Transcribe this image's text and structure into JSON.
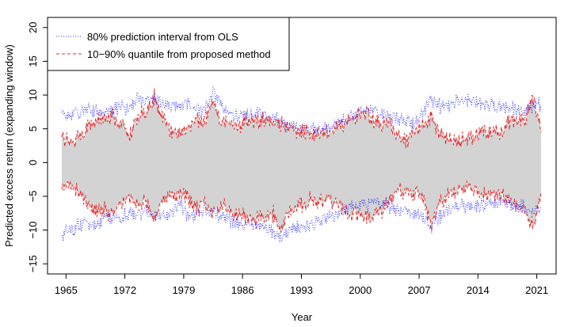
{
  "chart_data": {
    "type": "line",
    "title": "",
    "xlabel": "Year",
    "ylabel": "Predicted excess return (expanding window)",
    "xlim": [
      1962.8,
      2023.3
    ],
    "ylim": [
      -16.5,
      21.5
    ],
    "x_ticks": [
      1965,
      1972,
      1979,
      1986,
      1993,
      2000,
      2007,
      2014,
      2021
    ],
    "x_tick_labels": [
      "1965",
      "1972",
      "1979",
      "1986",
      "1993",
      "2000",
      "2007",
      "2014",
      "2021"
    ],
    "y_ticks": [
      -15,
      -10,
      -5,
      0,
      5,
      10,
      15,
      20
    ],
    "y_tick_labels": [
      "−15",
      "−10",
      "−5",
      "0",
      "5",
      "10",
      "15",
      "20"
    ],
    "grid": false,
    "legend": {
      "position": "top-left",
      "entries": [
        "80% prediction interval from OLS",
        "10−90% quantile from proposed method"
      ]
    },
    "colors": {
      "ols": "#3a3aff",
      "quantile": "#e8282a",
      "band": "#d3d3d3"
    },
    "x": [
      1964.5,
      1965.5,
      1966.5,
      1967.5,
      1968.5,
      1969.5,
      1970.5,
      1971.5,
      1972.5,
      1973.5,
      1974.5,
      1975.5,
      1976.5,
      1977.5,
      1978.5,
      1979.5,
      1980.5,
      1981.5,
      1982.5,
      1983.5,
      1984.5,
      1985.5,
      1986.5,
      1987.5,
      1988.5,
      1989.5,
      1990.5,
      1991.5,
      1992.5,
      1993.5,
      1994.5,
      1995.5,
      1996.5,
      1997.5,
      1998.5,
      1999.5,
      2000.5,
      2001.5,
      2002.5,
      2003.5,
      2004.5,
      2005.5,
      2006.5,
      2007.5,
      2008.5,
      2009.5,
      2010.5,
      2011.5,
      2012.5,
      2013.5,
      2014.5,
      2015.5,
      2016.5,
      2017.5,
      2018.5,
      2019.5,
      2020.5,
      2021.5
    ],
    "series": [
      {
        "name": "80% prediction interval from OLS (upper)",
        "values": [
          6.8,
          7.2,
          7.5,
          8.2,
          7.8,
          7.4,
          7.9,
          8.4,
          8.2,
          9.5,
          8.7,
          9.8,
          8.6,
          8.3,
          8.5,
          8.9,
          8.1,
          7.6,
          10.8,
          8.4,
          7.3,
          6.9,
          7.1,
          7.4,
          7.0,
          6.6,
          6.1,
          5.6,
          5.4,
          5.3,
          5.1,
          5.0,
          5.4,
          5.9,
          6.6,
          7.2,
          7.6,
          7.9,
          7.4,
          6.9,
          6.3,
          6.0,
          6.1,
          7.2,
          9.3,
          8.3,
          8.6,
          8.9,
          9.1,
          8.7,
          8.4,
          8.6,
          8.3,
          8.5,
          7.7,
          7.2,
          8.6,
          8.8
        ]
      },
      {
        "name": "80% prediction interval from OLS (lower)",
        "values": [
          -10.8,
          -9.9,
          -9.3,
          -9.1,
          -9.0,
          -8.5,
          -7.9,
          -8.2,
          -7.4,
          -7.7,
          -6.9,
          -8.4,
          -7.6,
          -7.9,
          -5.9,
          -8.3,
          -7.5,
          -7.3,
          -7.6,
          -8.2,
          -8.6,
          -9.1,
          -8.9,
          -9.3,
          -9.6,
          -10.2,
          -10.9,
          -10.1,
          -9.6,
          -9.3,
          -8.9,
          -8.8,
          -8.1,
          -7.5,
          -6.9,
          -6.3,
          -6.1,
          -5.7,
          -6.1,
          -6.6,
          -7.1,
          -7.4,
          -7.6,
          -8.1,
          -9.6,
          -7.9,
          -6.6,
          -6.4,
          -6.3,
          -6.5,
          -6.4,
          -6.1,
          -5.9,
          -5.8,
          -6.3,
          -6.7,
          -7.3,
          -6.9
        ]
      },
      {
        "name": "10−90% quantile from proposed method (upper)",
        "values": [
          3.6,
          2.8,
          3.5,
          5.2,
          6.4,
          6.1,
          7.2,
          5.6,
          4.1,
          6.8,
          7.4,
          9.8,
          6.3,
          4.9,
          4.6,
          5.1,
          6.8,
          5.7,
          9.2,
          6.1,
          5.6,
          5.4,
          6.2,
          5.8,
          6.3,
          6.1,
          5.6,
          5.2,
          4.7,
          4.6,
          4.2,
          4.4,
          4.7,
          5.3,
          5.9,
          6.8,
          7.2,
          6.3,
          5.7,
          6.1,
          3.8,
          3.5,
          4.3,
          5.6,
          6.7,
          4.1,
          3.6,
          3.3,
          3.8,
          3.9,
          4.7,
          4.8,
          4.1,
          5.6,
          6.7,
          6.3,
          9.7,
          5.2
        ]
      },
      {
        "name": "10−90% quantile from proposed method (lower)",
        "values": [
          -3.6,
          -3.1,
          -4.2,
          -6.1,
          -7.3,
          -6.7,
          -7.8,
          -6.1,
          -4.6,
          -6.2,
          -5.8,
          -8.4,
          -5.6,
          -4.7,
          -4.9,
          -5.3,
          -6.9,
          -6.1,
          -7.8,
          -6.3,
          -7.1,
          -7.6,
          -8.2,
          -8.6,
          -8.1,
          -7.2,
          -10.4,
          -7.1,
          -6.2,
          -5.9,
          -5.4,
          -5.6,
          -5.9,
          -6.4,
          -7.1,
          -7.8,
          -8.3,
          -7.6,
          -7.2,
          -5.9,
          -4.2,
          -4.4,
          -4.6,
          -5.4,
          -9.2,
          -5.7,
          -4.6,
          -4.1,
          -3.9,
          -4.3,
          -4.8,
          -4.9,
          -4.4,
          -5.1,
          -6.2,
          -6.8,
          -9.6,
          -4.9
        ]
      }
    ]
  }
}
